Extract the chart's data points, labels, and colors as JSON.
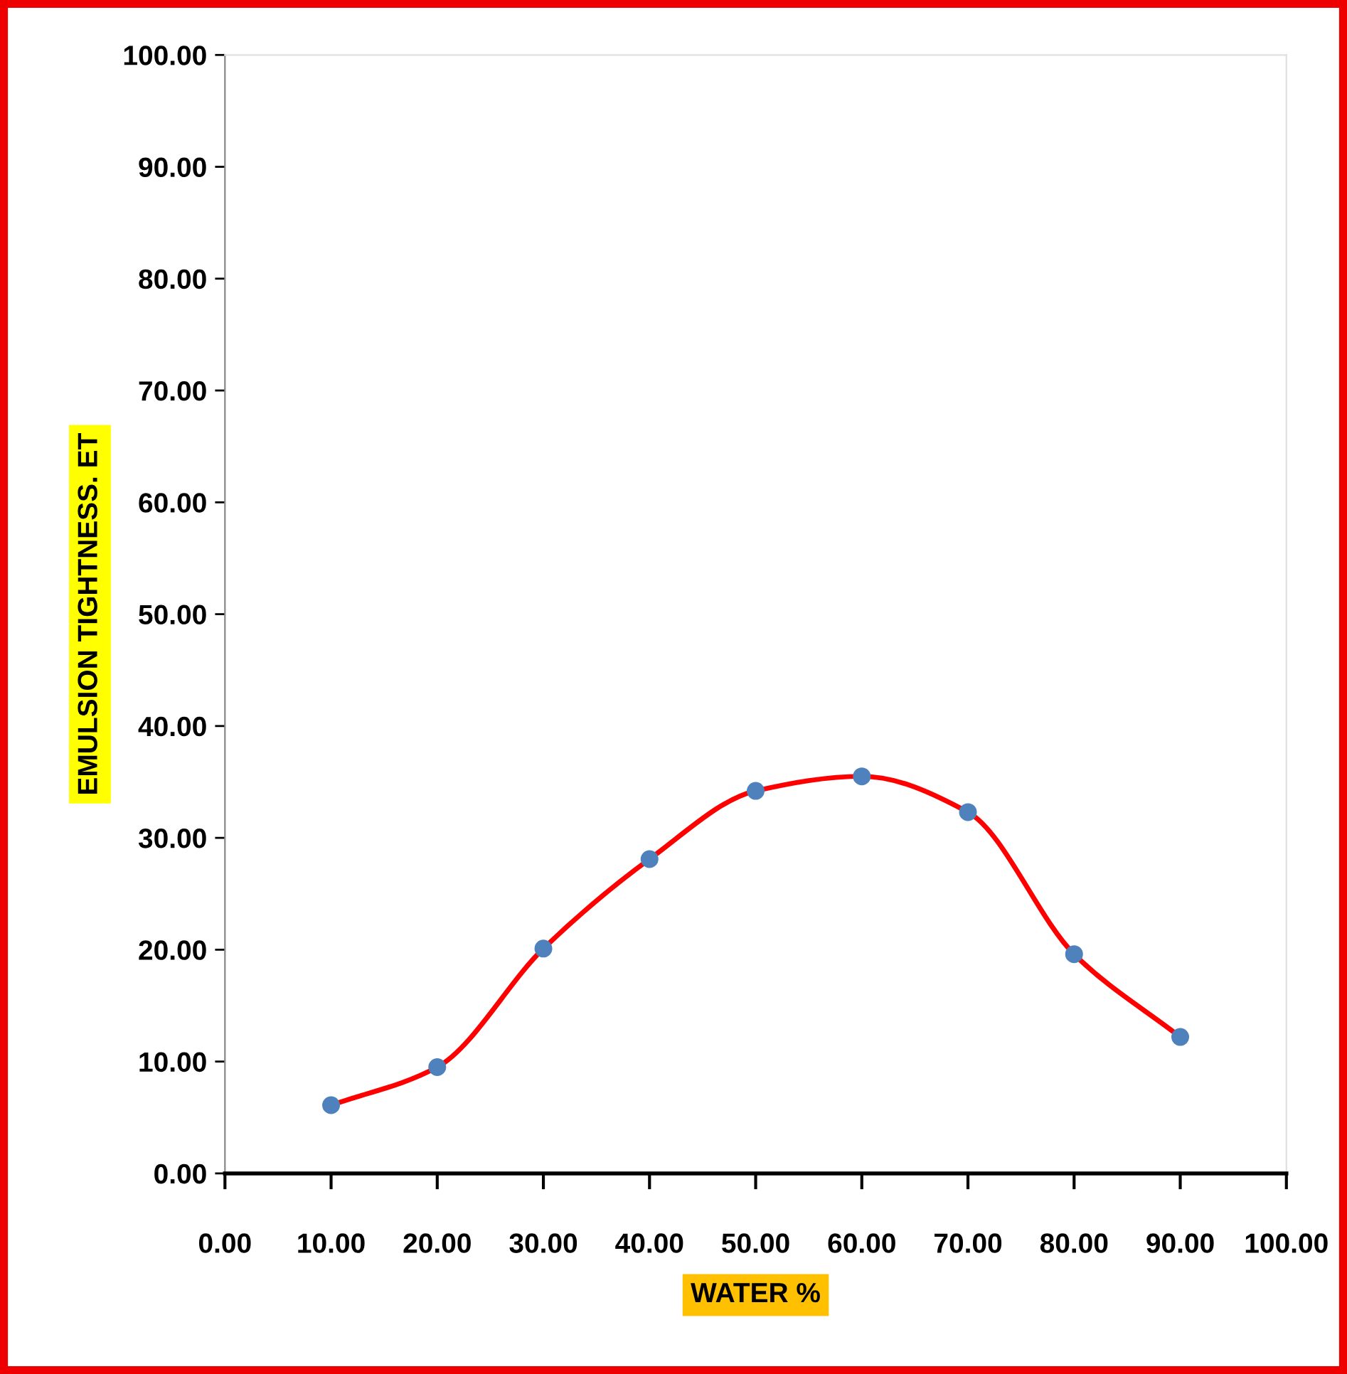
{
  "chart_data": {
    "type": "line",
    "xlabel": "WATER %",
    "ylabel": "EMULSION TIGHTNESS. ET",
    "x": [
      10,
      20,
      30,
      40,
      50,
      60,
      70,
      80,
      90
    ],
    "series": [
      {
        "color": "#ff0000",
        "values": [
          6.1,
          9.5,
          20.1,
          28.1,
          34.2,
          35.5,
          32.3,
          19.6,
          12.2
        ]
      }
    ],
    "xlim": [
      0,
      100
    ],
    "xticks": [
      {
        "value": 0,
        "label": "0.00"
      },
      {
        "value": 10,
        "label": "10.00"
      },
      {
        "value": 20,
        "label": "20.00"
      },
      {
        "value": 30,
        "label": "30.00"
      },
      {
        "value": 40,
        "label": "40.00"
      },
      {
        "value": 50,
        "label": "50.00"
      },
      {
        "value": 60,
        "label": "60.00"
      },
      {
        "value": 70,
        "label": "70.00"
      },
      {
        "value": 80,
        "label": "80.00"
      },
      {
        "value": 90,
        "label": "90.00"
      },
      {
        "value": 100,
        "label": "100.00"
      }
    ],
    "ylim": [
      0,
      100
    ],
    "yticks": [
      {
        "value": 0,
        "label": "0.00"
      },
      {
        "value": 10,
        "label": "10.00"
      },
      {
        "value": 20,
        "label": "20.00"
      },
      {
        "value": 30,
        "label": "30.00"
      },
      {
        "value": 40,
        "label": "40.00"
      },
      {
        "value": 50,
        "label": "50.00"
      },
      {
        "value": 60,
        "label": "60.00"
      },
      {
        "value": 70,
        "label": "70.00"
      },
      {
        "value": 80,
        "label": "80.00"
      },
      {
        "value": 90,
        "label": "90.00"
      },
      {
        "value": 100,
        "label": "100.00"
      }
    ],
    "marker": "circle",
    "grid": false
  }
}
